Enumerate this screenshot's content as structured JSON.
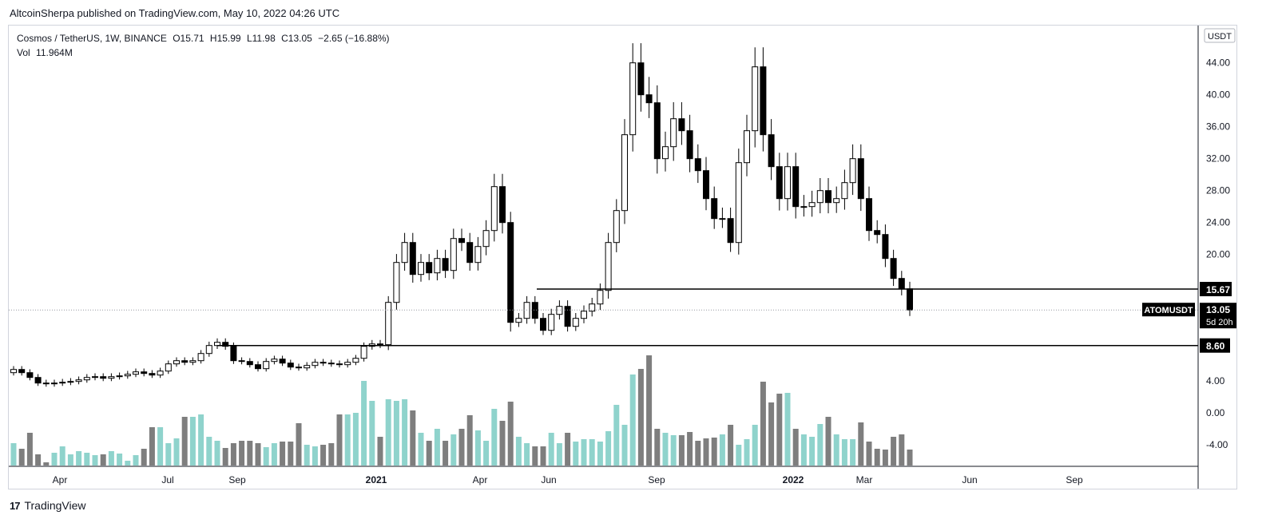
{
  "header": {
    "publisher": "AltcoinSherpa published on TradingView.com, May 10, 2022 04:26 UTC"
  },
  "legend": {
    "symbol": "Cosmos / TetherUS, 1W, BINANCE",
    "open": "O15.71",
    "high": "H15.99",
    "low": "L11.98",
    "close": "C13.05",
    "change": "−2.65 (−16.88%)",
    "volume_label": "Vol",
    "volume_value": "11.964M"
  },
  "price_axis": {
    "currency": "USDT",
    "ticks": [
      "44.00",
      "40.00",
      "36.00",
      "32.00",
      "28.00",
      "24.00",
      "20.00",
      "4.00",
      "0.00",
      "-4.00"
    ]
  },
  "price_labels": {
    "resistance": "15.67",
    "support": "8.60",
    "symbol_tag": "ATOMUSDT",
    "last_price": "13.05",
    "countdown": "5d 20h"
  },
  "footer": {
    "brand": "TradingView",
    "logo": "17"
  },
  "colors": {
    "bull_volume": "#8fd3cc",
    "bear_volume": "#7e7e7e",
    "bull_candle": "#ffffff",
    "bear_candle": "#000000",
    "line": "#000000",
    "axis_text": "#131722"
  },
  "chart_data": {
    "type": "candlestick",
    "title": "Cosmos / TetherUS, 1W, BINANCE",
    "x_ticks": [
      "Apr",
      "Jul",
      "Sep",
      "2021",
      "Apr",
      "Jun",
      "Sep",
      "2022",
      "Mar",
      "Jun",
      "Sep"
    ],
    "horizontal_lines": [
      15.67,
      8.6
    ],
    "ohlc_close": [
      5.6,
      5.2,
      4.6,
      3.9,
      3.8,
      3.9,
      4.0,
      4.1,
      4.3,
      4.6,
      4.7,
      4.5,
      4.7,
      4.8,
      5.0,
      5.3,
      5.1,
      4.9,
      5.4,
      6.3,
      6.7,
      6.5,
      6.7,
      7.6,
      8.6,
      9.0,
      8.5,
      6.7,
      6.6,
      6.2,
      5.7,
      6.6,
      6.9,
      6.4,
      5.9,
      5.8,
      6.1,
      6.5,
      6.4,
      6.3,
      6.2,
      6.5,
      7.0,
      8.5,
      8.8,
      8.7,
      14.0,
      19.0,
      21.5,
      17.5,
      19.0,
      17.7,
      19.5,
      18.0,
      22.0,
      21.5,
      19.0,
      21.0,
      23.0,
      28.5,
      24.0,
      11.5,
      12.0,
      14.0,
      12.0,
      10.5,
      12.5,
      13.5,
      11.0,
      12.0,
      12.9,
      13.8,
      15.5,
      21.5,
      25.5,
      35.0,
      44.0,
      40.0,
      39.0,
      32.0,
      33.5,
      37.0,
      35.5,
      32.0,
      30.5,
      27.0,
      24.5,
      24.5,
      21.5,
      31.5,
      35.5,
      43.5,
      35.0,
      31.0,
      27.0,
      31.0,
      26.0,
      26.0,
      26.5,
      28.0,
      26.5,
      27.0,
      29.0,
      32.0,
      27.0,
      23.0,
      22.5,
      19.5,
      17.0,
      15.7,
      13.05
    ],
    "volume": [
      -3.8,
      -4.5,
      -2.5,
      -5.2,
      -6.2,
      -5.0,
      -4.2,
      -5.2,
      -4.8,
      -5.0,
      -5.3,
      -5.2,
      -4.8,
      -5.1,
      -6.0,
      -5.3,
      -4.5,
      -1.8,
      -1.8,
      -3.8,
      -3.2,
      -0.5,
      -0.5,
      -0.2,
      -3.0,
      -3.5,
      -4.4,
      -3.8,
      -3.5,
      -3.5,
      -3.8,
      -4.3,
      -3.8,
      -3.6,
      -3.6,
      -1.3,
      -4.0,
      -4.2,
      -4.0,
      -3.8,
      -0.2,
      -0.2,
      0.0,
      4.0,
      1.5,
      -3.0,
      1.7,
      1.5,
      1.7,
      0.3,
      -2.5,
      -3.5,
      -2.0,
      -3.5,
      -2.7,
      -2.0,
      -0.3,
      -2.2,
      -3.5,
      0.5,
      -1.0,
      1.4,
      -3.0,
      -3.8,
      -4.2,
      -4.2,
      -2.5,
      -3.8,
      -2.5,
      -3.6,
      -3.3,
      -3.3,
      -3.6,
      -2.3,
      1.0,
      -1.5,
      4.8,
      5.5,
      7.2,
      -2.0,
      -2.5,
      -2.8,
      -2.8,
      -2.4,
      -3.5,
      -3.2,
      -3.1,
      -2.7,
      -1.5,
      -4.0,
      -3.3,
      -1.5,
      3.9,
      1.3,
      2.4,
      2.5,
      -2.0,
      -2.7,
      -3.0,
      -1.4,
      -0.5,
      -2.7,
      -3.3,
      -3.3,
      -1.2,
      -3.6,
      -4.5,
      -4.6,
      -3.0,
      -2.7,
      -4.6
    ]
  }
}
